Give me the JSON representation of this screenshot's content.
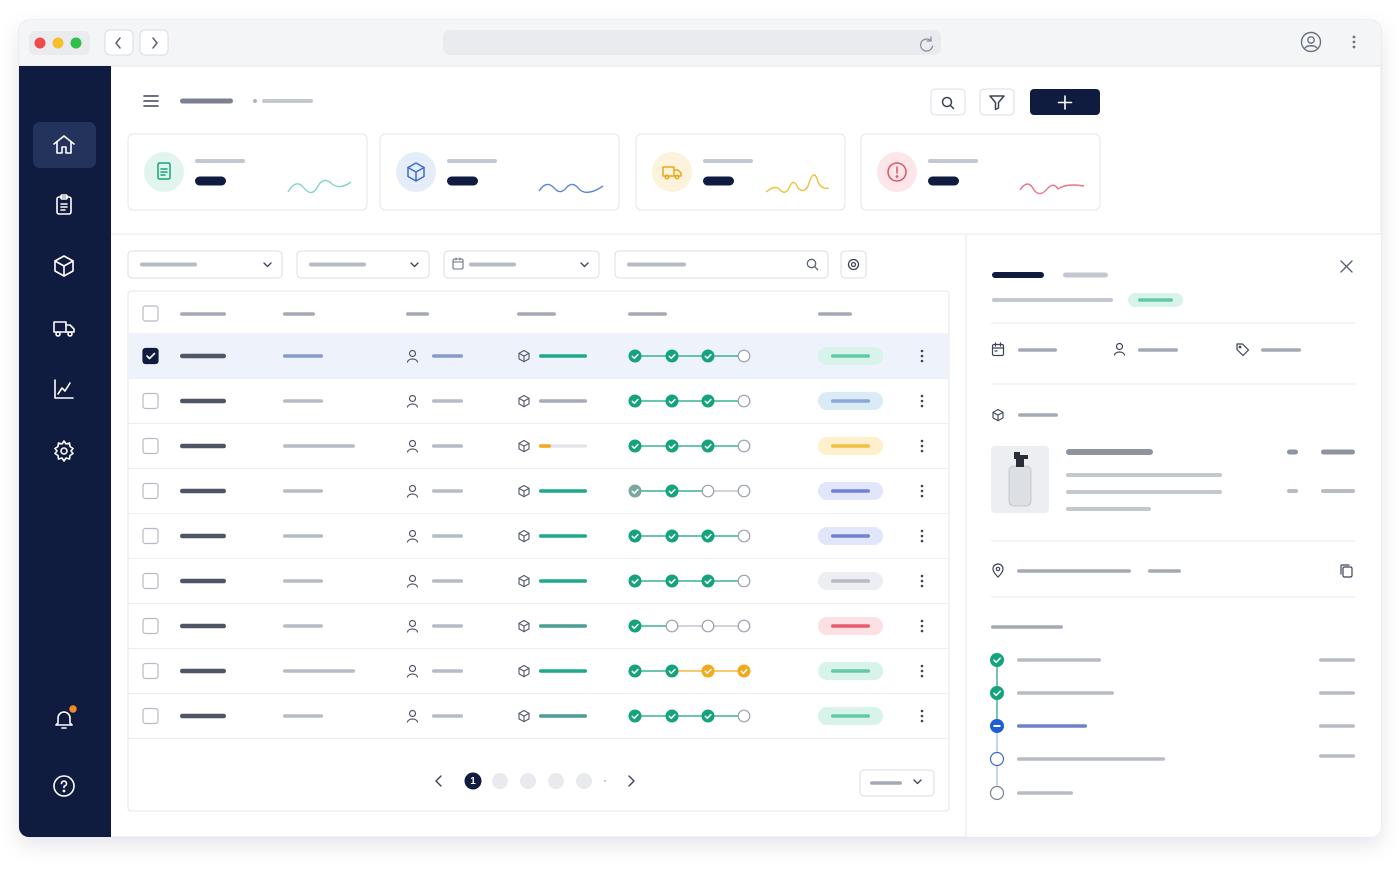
{
  "pagination": {
    "current_page": 1
  }
}
